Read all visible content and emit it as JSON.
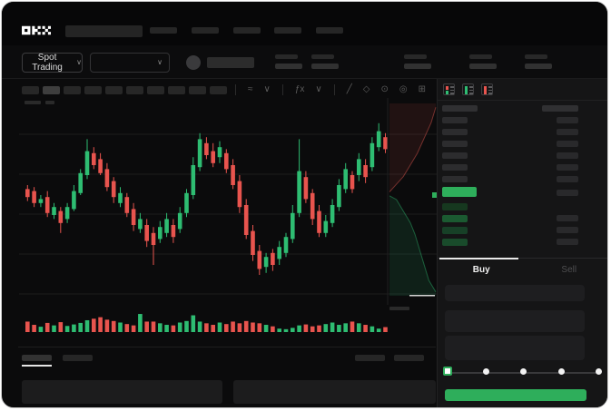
{
  "brand": {
    "name": "OKX"
  },
  "header": {
    "market_selector": "Spot Trading"
  },
  "toolbar": {
    "timeframe_slots": 10,
    "active_slot": 1,
    "icons": [
      {
        "name": "chart-style-icon",
        "glyph": "≈"
      },
      {
        "name": "chevron-down-icon",
        "glyph": "∨"
      },
      {
        "name": "indicators-icon",
        "glyph": "ƒx"
      },
      {
        "name": "chevron-down-icon",
        "glyph": "∨"
      },
      {
        "name": "trendline-icon",
        "glyph": "╱"
      },
      {
        "name": "compare-icon",
        "glyph": "◇"
      },
      {
        "name": "snapshot-icon",
        "glyph": "⊙"
      },
      {
        "name": "settings-icon",
        "glyph": "◎"
      },
      {
        "name": "fullscreen-icon",
        "glyph": "⊞"
      }
    ]
  },
  "orderbook": {
    "view_icons": [
      "book-combined-icon",
      "book-bids-icon",
      "book-asks-icon"
    ],
    "ask_rows": 6,
    "bid_rows": [
      {
        "shade": "#16381f",
        "right_bar": false
      },
      {
        "shade": "#1b5a31",
        "right_bar": true
      },
      {
        "shade": "#174027",
        "right_bar": true
      },
      {
        "shade": "#194b2b",
        "right_bar": true
      }
    ]
  },
  "trade_panel": {
    "buy_label": "Buy",
    "sell_label": "Sell",
    "active_tab": "Buy",
    "slider": {
      "stops": 5,
      "active_stop": 0
    }
  },
  "colors": {
    "green": "#2eae5b",
    "candle_up": "#2ebd72",
    "candle_down": "#e8544e",
    "depth_ask_line": "rgba(235,90,82,0.45)",
    "depth_ask_fill": "rgba(235,90,82,0.10)",
    "depth_bid_line": "rgba(46,189,114,0.45)",
    "depth_bid_fill": "rgba(46,189,114,0.12)"
  },
  "chart_data": {
    "type": "candlestick",
    "ylim": [
      0,
      100
    ],
    "grid": true,
    "legend": "skeleton-placeholders-only",
    "candles": [
      [
        58,
        60,
        52,
        54
      ],
      [
        57,
        59,
        49,
        51
      ],
      [
        51,
        55,
        49,
        53
      ],
      [
        54,
        57,
        44,
        46
      ],
      [
        45,
        51,
        43,
        49
      ],
      [
        47,
        49,
        36,
        41
      ],
      [
        43,
        51,
        41,
        49
      ],
      [
        48,
        60,
        47,
        57
      ],
      [
        56,
        68,
        55,
        66
      ],
      [
        65,
        83,
        63,
        77
      ],
      [
        76,
        79,
        68,
        70
      ],
      [
        73,
        76,
        65,
        66
      ],
      [
        68,
        71,
        57,
        59
      ],
      [
        62,
        64,
        51,
        54
      ],
      [
        51,
        59,
        49,
        56
      ],
      [
        54,
        56,
        44,
        46
      ],
      [
        48,
        51,
        37,
        40
      ],
      [
        38,
        46,
        36,
        43
      ],
      [
        40,
        43,
        29,
        32
      ],
      [
        36,
        39,
        20,
        30
      ],
      [
        33,
        42,
        31,
        39
      ],
      [
        36,
        46,
        34,
        43
      ],
      [
        40,
        43,
        31,
        34
      ],
      [
        38,
        49,
        36,
        46
      ],
      [
        46,
        58,
        44,
        56
      ],
      [
        55,
        74,
        53,
        70
      ],
      [
        69,
        86,
        67,
        83
      ],
      [
        81,
        84,
        73,
        75
      ],
      [
        77,
        81,
        69,
        71
      ],
      [
        74,
        82,
        71,
        79
      ],
      [
        76,
        78,
        66,
        68
      ],
      [
        70,
        73,
        58,
        60
      ],
      [
        62,
        65,
        46,
        49
      ],
      [
        50,
        53,
        33,
        35
      ],
      [
        37,
        40,
        22,
        25
      ],
      [
        27,
        30,
        15,
        18
      ],
      [
        19,
        26,
        16,
        24
      ],
      [
        26,
        28,
        17,
        20
      ],
      [
        23,
        32,
        20,
        29
      ],
      [
        26,
        36,
        24,
        34
      ],
      [
        33,
        50,
        31,
        46
      ],
      [
        46,
        83,
        44,
        67
      ],
      [
        64,
        67,
        51,
        53
      ],
      [
        56,
        58,
        40,
        43
      ],
      [
        47,
        50,
        34,
        36
      ],
      [
        36,
        45,
        34,
        42
      ],
      [
        41,
        53,
        39,
        50
      ],
      [
        49,
        63,
        47,
        60
      ],
      [
        58,
        71,
        56,
        68
      ],
      [
        65,
        67,
        56,
        58
      ],
      [
        65,
        76,
        62,
        73
      ],
      [
        70,
        73,
        61,
        64
      ],
      [
        69,
        84,
        67,
        81
      ],
      [
        79,
        91,
        77,
        87
      ],
      [
        84,
        86,
        76,
        78
      ]
    ],
    "volume": [
      55,
      38,
      28,
      48,
      35,
      52,
      32,
      40,
      48,
      62,
      70,
      78,
      65,
      58,
      50,
      42,
      35,
      95,
      55,
      55,
      46,
      38,
      35,
      50,
      58,
      88,
      55,
      46,
      38,
      50,
      42,
      55,
      46,
      58,
      50,
      46,
      38,
      30,
      18,
      15,
      22,
      35,
      40,
      30,
      35,
      42,
      50,
      38,
      46,
      55,
      46,
      38,
      30,
      18,
      26
    ],
    "depth": {
      "asks": [
        [
          0,
          46
        ],
        [
          15,
          42
        ],
        [
          30,
          38
        ],
        [
          45,
          32
        ],
        [
          60,
          26
        ],
        [
          75,
          18
        ],
        [
          90,
          10
        ],
        [
          100,
          2
        ]
      ],
      "bids": [
        [
          0,
          48
        ],
        [
          15,
          50
        ],
        [
          30,
          56
        ],
        [
          45,
          62
        ],
        [
          55,
          68
        ],
        [
          65,
          76
        ],
        [
          75,
          84
        ],
        [
          85,
          92
        ],
        [
          100,
          98
        ]
      ]
    }
  }
}
